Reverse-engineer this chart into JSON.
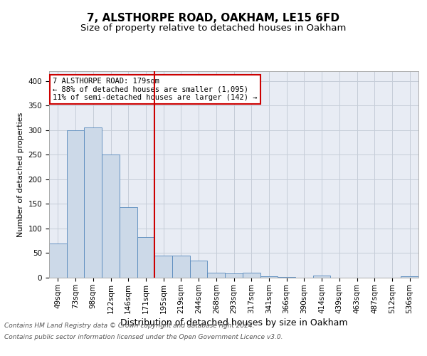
{
  "title1": "7, ALSTHORPE ROAD, OAKHAM, LE15 6FD",
  "title2": "Size of property relative to detached houses in Oakham",
  "xlabel": "Distribution of detached houses by size in Oakham",
  "ylabel": "Number of detached properties",
  "categories": [
    "49sqm",
    "73sqm",
    "98sqm",
    "122sqm",
    "146sqm",
    "171sqm",
    "195sqm",
    "219sqm",
    "244sqm",
    "268sqm",
    "293sqm",
    "317sqm",
    "341sqm",
    "366sqm",
    "390sqm",
    "414sqm",
    "439sqm",
    "463sqm",
    "487sqm",
    "512sqm",
    "536sqm"
  ],
  "values": [
    70,
    300,
    305,
    250,
    143,
    83,
    45,
    45,
    35,
    10,
    8,
    10,
    3,
    1,
    0,
    5,
    0,
    0,
    0,
    0,
    3
  ],
  "bar_color": "#ccd9e8",
  "bar_edge_color": "#5588bb",
  "grid_color": "#c5cdd8",
  "property_bin_index": 5,
  "vline_color": "#cc0000",
  "annotation_line1": "7 ALSTHORPE ROAD: 179sqm",
  "annotation_line2": "← 88% of detached houses are smaller (1,095)",
  "annotation_line3": "11% of semi-detached houses are larger (142) →",
  "annotation_box_color": "#ffffff",
  "annotation_box_edge": "#cc0000",
  "footer1": "Contains HM Land Registry data © Crown copyright and database right 2024.",
  "footer2": "Contains public sector information licensed under the Open Government Licence v3.0.",
  "ylim": [
    0,
    420
  ],
  "yticks": [
    0,
    50,
    100,
    150,
    200,
    250,
    300,
    350,
    400
  ],
  "background_color": "#e8ecf4",
  "fig_background": "#ffffff",
  "title1_fontsize": 11,
  "title2_fontsize": 9.5,
  "xlabel_fontsize": 9,
  "ylabel_fontsize": 8,
  "tick_fontsize": 7.5,
  "annot_fontsize": 7.5,
  "footer_fontsize": 6.5
}
